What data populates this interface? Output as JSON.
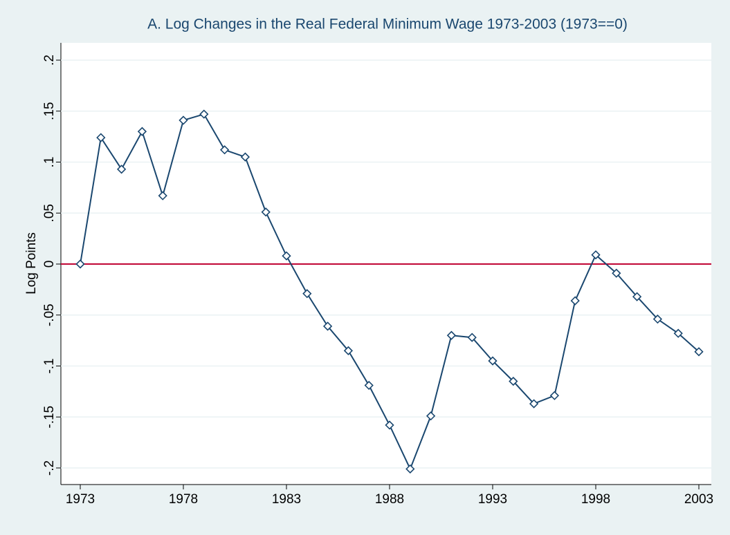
{
  "chart_data": {
    "type": "line",
    "title": "A. Log Changes in the Real Federal Minimum Wage 1973-2003 (1973==0)",
    "y_label": "Log Points",
    "x": [
      1973,
      1974,
      1975,
      1976,
      1977,
      1978,
      1979,
      1980,
      1981,
      1982,
      1983,
      1984,
      1985,
      1986,
      1987,
      1988,
      1989,
      1990,
      1991,
      1992,
      1993,
      1994,
      1995,
      1996,
      1997,
      1998,
      1999,
      2000,
      2001,
      2002,
      2003
    ],
    "series": [
      {
        "color": "#1a476f",
        "marker": "diamond",
        "values": [
          0,
          0.124,
          0.093,
          0.13,
          0.067,
          0.141,
          0.147,
          0.112,
          0.105,
          0.051,
          0.008,
          -0.029,
          -0.061,
          -0.085,
          -0.119,
          -0.158,
          -0.201,
          -0.149,
          -0.07,
          -0.072,
          -0.095,
          -0.115,
          -0.137,
          -0.129,
          -0.036,
          0.009,
          -0.009,
          -0.032,
          -0.054,
          -0.068,
          -0.086
        ]
      }
    ],
    "xlim": [
      1973,
      2003
    ],
    "xticks": [
      1973,
      1978,
      1983,
      1988,
      1993,
      1998,
      2003
    ],
    "ylim": [
      -0.2,
      0.2
    ],
    "yticks": [
      {
        "value": -0.2,
        "label": "-.2"
      },
      {
        "value": -0.15,
        "label": "-.15"
      },
      {
        "value": -0.1,
        "label": "-.1"
      },
      {
        "value": -0.05,
        "label": "-.05"
      },
      0,
      {
        "value": 0.05,
        "label": ".05"
      },
      {
        "value": 0.1,
        "label": ".1"
      },
      {
        "value": 0.15,
        "label": ".15"
      },
      {
        "value": 0.2,
        "label": ".2"
      }
    ],
    "grid": true,
    "reference_line": {
      "value": 0,
      "color": "#c10534"
    }
  }
}
